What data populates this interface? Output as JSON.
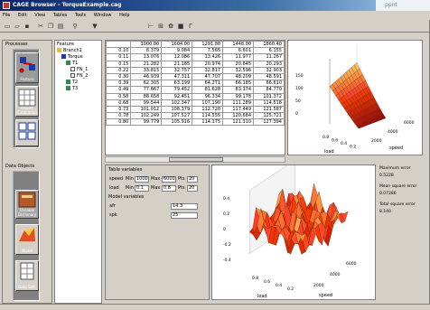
{
  "window": {
    "title": "CAGE Browser - TorqueExample.cag",
    "ghost_tab": "ppnt"
  },
  "menu": [
    "File",
    "Edit",
    "View",
    "Tables",
    "Tools",
    "Window",
    "Help"
  ],
  "processes": {
    "title": "Processes",
    "items": [
      "Feature",
      "Import\nCalibration",
      "Tradeoff"
    ]
  },
  "data_objects": {
    "title": "Data Objects",
    "items": [
      "Variable\nDictionary",
      "Model",
      "Data Sets"
    ]
  },
  "tree": {
    "title": "Feature",
    "nodes": [
      "Branch1",
      "Torque",
      "T1",
      "FN_1",
      "FN_2",
      "T2",
      "T3"
    ]
  },
  "table": {
    "columns": [
      "1000.00",
      "1604.00",
      "1291.80",
      "1448.00",
      "1860.40"
    ],
    "row_labels": [
      "0.10",
      "0.11",
      "0.15",
      "0.22",
      "0.30",
      "0.39",
      "0.49",
      "0.58",
      "0.68",
      "0.73",
      "0.78",
      "0.80"
    ],
    "rows": [
      [
        "8.379",
        "9.084",
        "7.565",
        "6.601",
        "6.155"
      ],
      [
        "13.076",
        "12.086",
        "13.426",
        "11.977",
        "11.267"
      ],
      [
        "21.282",
        "21.185",
        "20.974",
        "20.645",
        "20.293"
      ],
      [
        "33.815",
        "32.757",
        "32.817",
        "32.596",
        "32.903"
      ],
      [
        "46.939",
        "47.311",
        "47.707",
        "48.209",
        "48.591"
      ],
      [
        "62.305",
        "63.199",
        "64.271",
        "66.185",
        "66.610"
      ],
      [
        "77.667",
        "79.452",
        "81.628",
        "83.374",
        "84.770"
      ],
      [
        "88.658",
        "92.451",
        "96.334",
        "99.178",
        "101.372"
      ],
      [
        "99.544",
        "102.347",
        "107.190",
        "111.289",
        "114.518"
      ],
      [
        "101.012",
        "108.379",
        "112.720",
        "117.449",
        "121.587"
      ],
      [
        "102.249",
        "107.527",
        "114.555",
        "120.684",
        "125.721"
      ],
      [
        "99.779",
        "105.916",
        "114.175",
        "121.310",
        "127.394"
      ]
    ]
  },
  "variables": {
    "title": "Table variables",
    "rows": [
      {
        "name": "speed",
        "min": "1000",
        "max": "6000",
        "pts": "20"
      },
      {
        "name": "load",
        "min": "0.1",
        "max": "0.8",
        "pts": "20"
      }
    ],
    "model_title": "Model variables",
    "model_rows": [
      {
        "name": "afr",
        "value": "14.3"
      },
      {
        "name": "spk",
        "value": "25"
      }
    ],
    "labels": {
      "min": "Min",
      "max": "Max",
      "pts": "Pts"
    }
  },
  "plot1": {
    "zlabel_ticks": [
      "150",
      "100",
      "50",
      "0"
    ],
    "x_ticks": [
      "0.8",
      "0.6",
      "0.4",
      "0.2"
    ],
    "y_ticks": [
      "2000",
      "4000",
      "6000"
    ],
    "xlabel": "load",
    "ylabel": "speed"
  },
  "plot2": {
    "z_ticks": [
      "0.4",
      "0.2",
      "0",
      "-0.2",
      "-0.4"
    ],
    "x_ticks": [
      "0.8",
      "0.6",
      "0.4",
      "0.2"
    ],
    "y_ticks": [
      "2000",
      "4000",
      "6000"
    ],
    "xlabel": "load",
    "ylabel": "speed"
  },
  "stats": {
    "max_error_label": "Maximum error",
    "max_error": "0.5228",
    "mean_error_label": "Mean square error",
    "mean_error": "0.07286",
    "total_error_label": "Total square error",
    "total_error": "8.140"
  },
  "colors": {
    "surface_high": "#ffff66",
    "surface_mid": "#e8541c",
    "surface_low": "#8b0000",
    "titlebar": "#0a246a"
  }
}
